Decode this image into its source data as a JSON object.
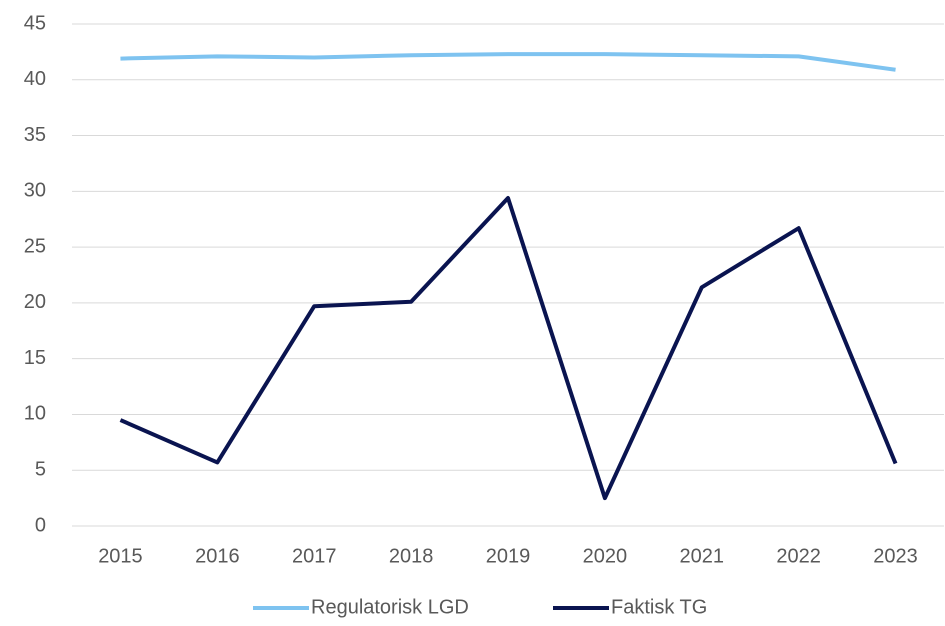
{
  "chart_data": {
    "type": "line",
    "categories": [
      "2015",
      "2016",
      "2017",
      "2018",
      "2019",
      "2020",
      "2021",
      "2022",
      "2023"
    ],
    "series": [
      {
        "name": "Regulatorisk LGD",
        "color": "#7ec3f0",
        "values": [
          41.9,
          42.1,
          42.0,
          42.2,
          42.3,
          42.3,
          42.2,
          42.1,
          40.9
        ]
      },
      {
        "name": "Faktisk TG",
        "color": "#0a1450",
        "values": [
          9.5,
          5.7,
          19.7,
          20.1,
          29.4,
          2.5,
          21.4,
          26.7,
          5.6
        ]
      }
    ],
    "ylim": [
      0,
      45
    ],
    "yticks": [
      0,
      5,
      10,
      15,
      20,
      25,
      30,
      35,
      40,
      45
    ],
    "grid": true,
    "legend": "bottom"
  }
}
